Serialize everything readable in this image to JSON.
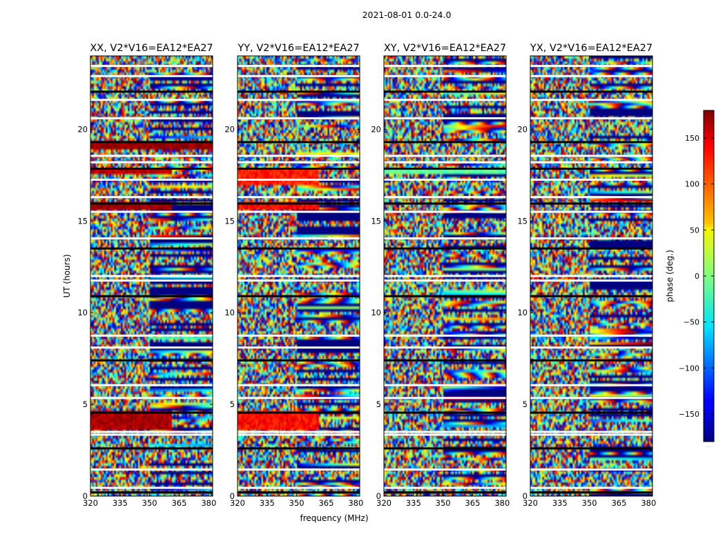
{
  "chart_data": {
    "type": "heatmap",
    "title": "2021-08-01 0.0-24.0",
    "xlabel": "frequency (MHz)",
    "ylabel": "UT (hours)",
    "xlim": [
      320,
      382
    ],
    "ylim": [
      0,
      24
    ],
    "xticks": [
      320,
      335,
      350,
      365,
      380
    ],
    "yticks": [
      0,
      5,
      10,
      15,
      20
    ],
    "panels": [
      {
        "title": "XX, V2*V16=EA12*EA27",
        "product": "XX"
      },
      {
        "title": "YY, V2*V16=EA12*EA27",
        "product": "YY"
      },
      {
        "title": "XY, V2*V16=EA12*EA27",
        "product": "XY"
      },
      {
        "title": "YX, V2*V16=EA12*EA27",
        "product": "YX"
      }
    ],
    "colorbar": {
      "label": "phase (deg.)",
      "range": [
        -180,
        180
      ],
      "ticks": [
        150,
        100,
        50,
        0,
        -50,
        -100,
        -150
      ],
      "tick_labels": [
        "150",
        "100",
        "50",
        "0",
        "−50",
        "−100",
        "−150"
      ],
      "colormap": "jet",
      "bottom_label": "....."
    },
    "flagged_ut_hours": [
      0.2,
      0.45,
      1.45,
      2.6,
      3.35,
      3.5,
      4.55,
      5.35,
      6.05,
      7.4,
      8.1,
      8.75,
      10.9,
      11.75,
      12.0,
      13.5,
      14.05,
      15.5,
      15.95,
      16.3,
      17.25,
      17.85,
      18.2,
      18.55,
      19.3,
      20.6,
      21.6,
      22.05,
      22.9,
      23.45
    ],
    "strong_phase_blocks": [
      {
        "product": "XX",
        "ut_start": 3.6,
        "ut_end": 4.6,
        "freq_end": 361,
        "phase_deg": 165
      },
      {
        "product": "XX",
        "ut_start": 15.6,
        "ut_end": 16.0,
        "freq_end": 361,
        "phase_deg": 170
      },
      {
        "product": "XX",
        "ut_start": 17.6,
        "ut_end": 17.9,
        "freq_end": 361,
        "phase_deg": 160
      },
      {
        "product": "XX",
        "ut_start": 18.9,
        "ut_end": 19.3,
        "freq_end": 382,
        "phase_deg": 175
      },
      {
        "product": "YY",
        "ut_start": 3.6,
        "ut_end": 4.6,
        "freq_end": 361,
        "phase_deg": 130
      },
      {
        "product": "YY",
        "ut_start": 15.6,
        "ut_end": 16.0,
        "freq_end": 361,
        "phase_deg": 135
      },
      {
        "product": "YY",
        "ut_start": 17.0,
        "ut_end": 17.9,
        "freq_end": 361,
        "phase_deg": 125
      },
      {
        "product": "XY",
        "ut_start": 17.6,
        "ut_end": 17.9,
        "freq_end": 382,
        "phase_deg": -10
      }
    ]
  }
}
